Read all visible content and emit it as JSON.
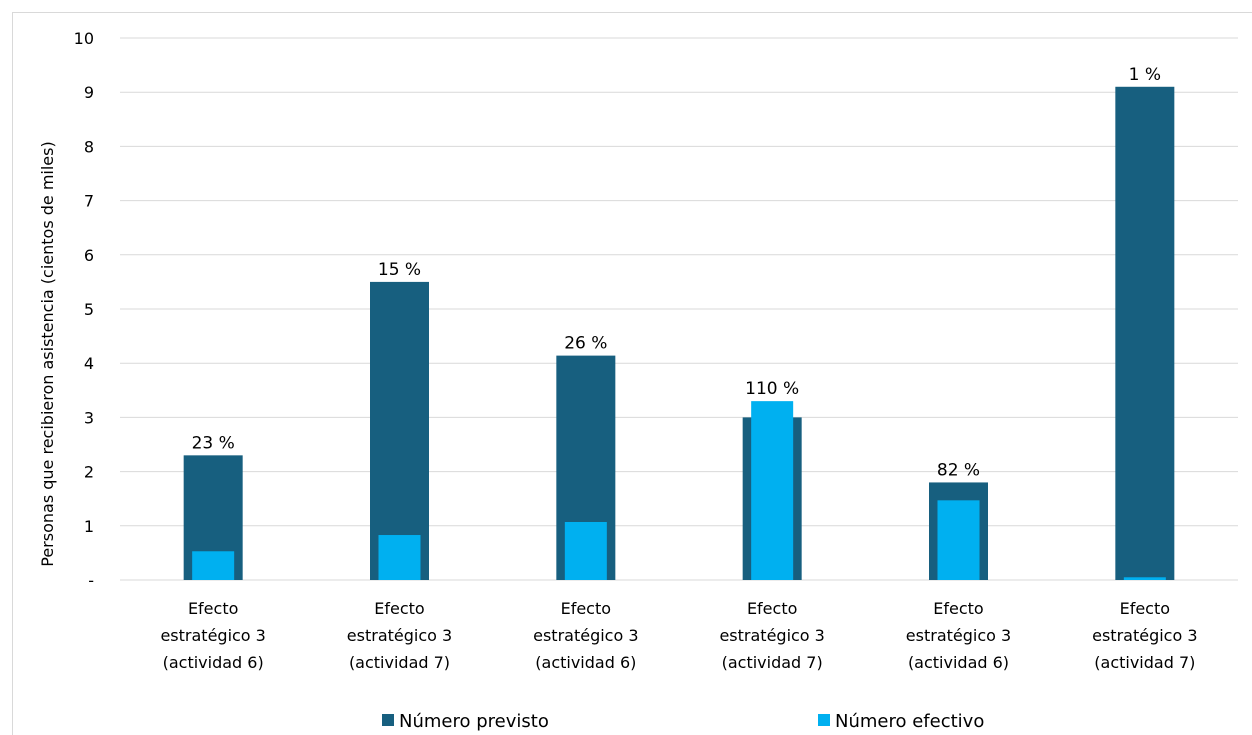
{
  "chart_data": {
    "type": "bar",
    "ylabel": "Personas que recibieron asistencia (cientos de miles)",
    "xlabel": "",
    "ylim": [
      0,
      10
    ],
    "yticks": [
      "-",
      "1",
      "2",
      "3",
      "4",
      "5",
      "6",
      "7",
      "8",
      "9",
      "10"
    ],
    "grid": true,
    "legend_position": "bottom",
    "categories": [
      [
        "Efecto",
        "estratégico 3",
        "(actividad 6)"
      ],
      [
        "Efecto",
        "estratégico 3",
        "(actividad 7)"
      ],
      [
        "Efecto",
        "estratégico 3",
        "(actividad 6)"
      ],
      [
        "Efecto",
        "estratégico 3",
        "(actividad 7)"
      ],
      [
        "Efecto",
        "estratégico 3",
        "(actividad 6)"
      ],
      [
        "Efecto",
        "estratégico 3",
        "(actividad 7)"
      ]
    ],
    "series": [
      {
        "name": "Número previsto",
        "color": "#175f7f",
        "values": [
          2.3,
          5.5,
          4.14,
          3.0,
          1.8,
          9.1
        ]
      },
      {
        "name": "Número efectivo",
        "color": "#00b0f0",
        "values": [
          0.53,
          0.83,
          1.07,
          3.3,
          1.47,
          0.05
        ]
      }
    ],
    "data_labels": [
      "23 %",
      "15 %",
      "26 %",
      "110 %",
      "82 %",
      "1 %"
    ]
  }
}
